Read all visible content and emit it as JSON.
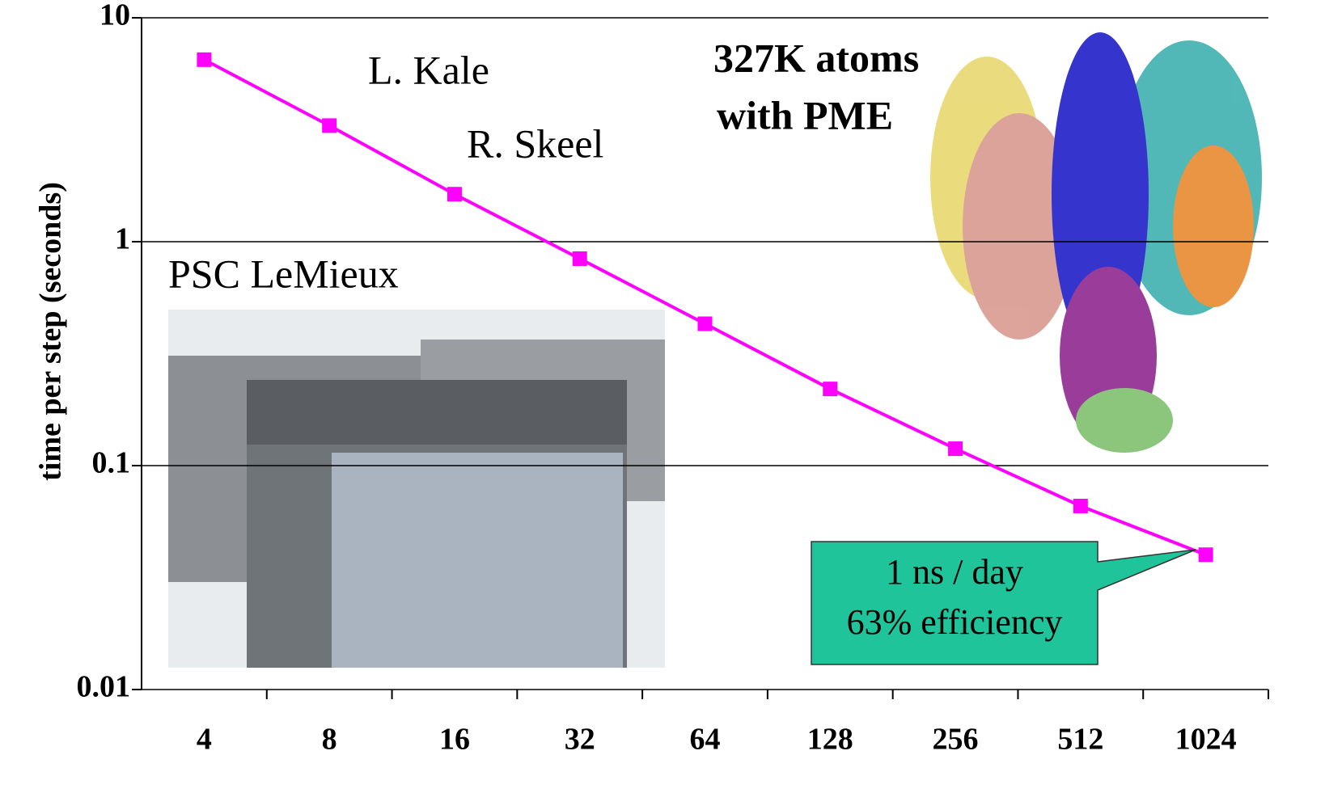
{
  "chart_data": {
    "type": "line",
    "y_label": "time per step (seconds)",
    "categories": [
      "4",
      "8",
      "16",
      "32",
      "64",
      "128",
      "256",
      "512",
      "1024"
    ],
    "series": [
      {
        "color": "#ff00ff",
        "values": [
          6.5,
          3.3,
          1.63,
          0.84,
          0.43,
          0.22,
          0.119,
          0.066,
          0.04
        ]
      }
    ],
    "ylim": [
      0.01,
      10
    ],
    "yticks": [
      10,
      1,
      0.1,
      0.01
    ],
    "log_scale": true,
    "grid": true,
    "annotations": [
      "L. Kale",
      "R. Skeel",
      "327K atoms",
      "with PME",
      "PSC LeMieux"
    ],
    "callout": [
      "1 ns / day",
      "63% efficiency"
    ]
  }
}
